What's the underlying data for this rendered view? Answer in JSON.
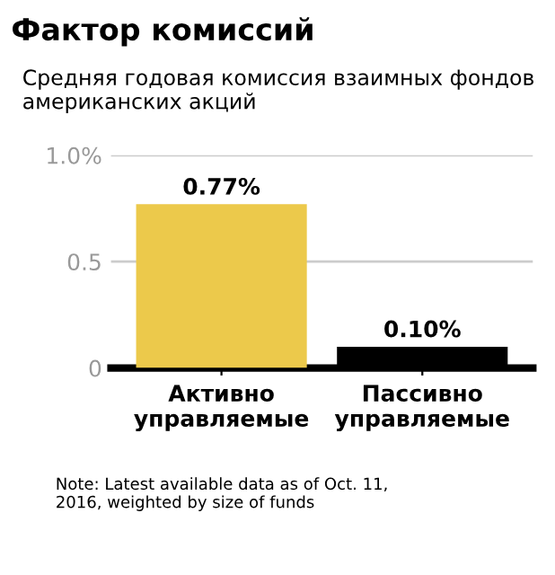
{
  "chart_data": {
    "type": "bar",
    "title": "Фактор комиссий",
    "subtitle": "Средняя годовая комиссия взаимных фондов американских акций",
    "categories": [
      "Активно\nуправляемые",
      "Пассивно\nуправляемые"
    ],
    "values": [
      0.77,
      0.1
    ],
    "colors": [
      "#ecc94b",
      "#000000"
    ],
    "value_labels": [
      "0.77%",
      "0.10%"
    ],
    "ylim": [
      0,
      1.0
    ],
    "yticks": [
      0,
      0.5,
      {
        "value": 1.0,
        "label": "1.0%"
      }
    ],
    "grid": "y",
    "annotations": [
      "Note: Latest available data as of Oct. 11,\n2016, weighted by size of funds"
    ]
  }
}
